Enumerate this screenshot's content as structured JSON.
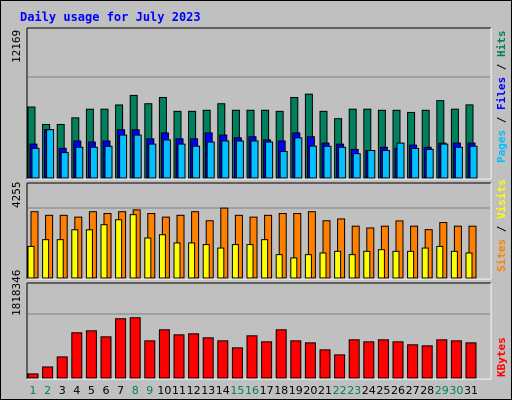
{
  "chart_data": [
    {
      "type": "bar",
      "title": "Daily usage for July 2023",
      "categories": [
        "1",
        "2",
        "3",
        "4",
        "5",
        "6",
        "7",
        "8",
        "9",
        "10",
        "11",
        "12",
        "13",
        "14",
        "15",
        "16",
        "17",
        "18",
        "19",
        "20",
        "21",
        "22",
        "23",
        "24",
        "25",
        "26",
        "27",
        "28",
        "29",
        "30",
        "31"
      ],
      "ylabel": "Pages / Files / Hits",
      "ytick": "12169",
      "ylim": [
        0,
        12169
      ],
      "series": [
        {
          "name": "Hits",
          "color": "#00805c",
          "values": [
            8550,
            6450,
            6450,
            7250,
            8290,
            8290,
            8800,
            9950,
            8950,
            9700,
            8030,
            8030,
            8160,
            8950,
            8160,
            8160,
            8160,
            8030,
            9700,
            10100,
            8030,
            7150,
            8290,
            8290,
            8160,
            8160,
            7900,
            8160,
            9320,
            8290,
            8810
          ]
        },
        {
          "name": "Files",
          "color": "#0000ff",
          "values": [
            4080,
            5820,
            3570,
            4460,
            4330,
            4460,
            5810,
            5810,
            4720,
            5430,
            4720,
            4720,
            5430,
            5170,
            4840,
            4970,
            4590,
            4460,
            5430,
            4970,
            4210,
            4080,
            3440,
            3310,
            3700,
            3570,
            3960,
            3700,
            4200,
            4210,
            4210
          ]
        },
        {
          "name": "Pages",
          "color": "#00c0ff",
          "values": [
            3570,
            5820,
            3060,
            3700,
            3700,
            3820,
            5170,
            5170,
            4080,
            4590,
            4080,
            3830,
            4330,
            4460,
            4460,
            4460,
            4330,
            3190,
            4840,
            3840,
            3820,
            3700,
            2930,
            3310,
            3310,
            4200,
            3560,
            3440,
            4080,
            3700,
            3820
          ]
        }
      ]
    },
    {
      "type": "bar",
      "categories": [
        "1",
        "2",
        "3",
        "4",
        "5",
        "6",
        "7",
        "8",
        "9",
        "10",
        "11",
        "12",
        "13",
        "14",
        "15",
        "16",
        "17",
        "18",
        "19",
        "20",
        "21",
        "22",
        "23",
        "24",
        "25",
        "26",
        "27",
        "28",
        "29",
        "30",
        "31"
      ],
      "ylabel": "Sites / Visits",
      "ytick": "4255",
      "ylim": [
        0,
        4255
      ],
      "series": [
        {
          "name": "Visits",
          "color": "#ff8000",
          "values": [
            4030,
            3810,
            3810,
            3700,
            4030,
            3920,
            4030,
            4140,
            3920,
            3700,
            3810,
            4030,
            3480,
            4250,
            3810,
            3700,
            3810,
            3920,
            3920,
            4030,
            3480,
            3590,
            3150,
            3040,
            3150,
            3470,
            3150,
            2940,
            3370,
            3150,
            3150
          ]
        },
        {
          "name": "Sites",
          "color": "#ffff00",
          "values": [
            1920,
            2330,
            2330,
            2930,
            2930,
            3240,
            3540,
            3850,
            2430,
            2630,
            2130,
            2130,
            2030,
            1820,
            2030,
            2030,
            2330,
            1420,
            1220,
            1420,
            1520,
            1620,
            1420,
            1620,
            1720,
            1620,
            1620,
            1820,
            1920,
            1620,
            1520
          ]
        }
      ]
    },
    {
      "type": "bar",
      "categories": [
        "1",
        "2",
        "3",
        "4",
        "5",
        "6",
        "7",
        "8",
        "9",
        "10",
        "11",
        "12",
        "13",
        "14",
        "15",
        "16",
        "17",
        "18",
        "19",
        "20",
        "21",
        "22",
        "23",
        "24",
        "25",
        "26",
        "27",
        "28",
        "29",
        "30",
        "31"
      ],
      "ylabel": "KBytes",
      "ytick": "1818346",
      "ylim": [
        0,
        1818346
      ],
      "series": [
        {
          "name": "KBytes",
          "color": "#ff0000",
          "values": [
            116000,
            314000,
            599000,
            1285000,
            1341000,
            1170000,
            1684000,
            1712000,
            1056000,
            1370000,
            1227000,
            1256000,
            1142000,
            1056000,
            857000,
            1199000,
            1028000,
            1370000,
            1056000,
            999000,
            799000,
            657000,
            1085000,
            1028000,
            1085000,
            1028000,
            943000,
            914000,
            1085000,
            1056000,
            999000
          ]
        }
      ]
    }
  ],
  "colors": {
    "title": "#0000ff",
    "day_weekday": "#000000",
    "day_weekend": "#00805c",
    "panel": "#c0c0c0",
    "scale_line": "#808080"
  },
  "weekend_days": [
    "1",
    "2",
    "8",
    "9",
    "15",
    "16",
    "22",
    "23",
    "29",
    "30"
  ]
}
